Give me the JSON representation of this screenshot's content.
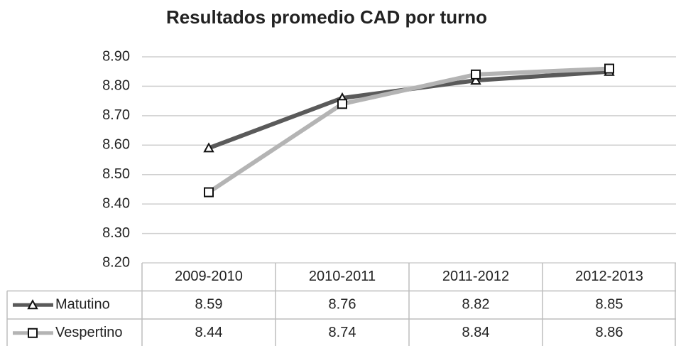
{
  "chart_data": {
    "type": "line",
    "title": "Resultados promedio CAD por turno",
    "categories": [
      "2009-2010",
      "2010-2011",
      "2011-2012",
      "2012-2013"
    ],
    "series": [
      {
        "name": "Matutino",
        "color": "#5a5a5a",
        "marker": "triangle",
        "values": [
          8.59,
          8.76,
          8.82,
          8.85
        ]
      },
      {
        "name": "Vespertino",
        "color": "#b4b4b4",
        "marker": "square",
        "values": [
          8.44,
          8.74,
          8.84,
          8.86
        ]
      }
    ],
    "ylim": [
      8.2,
      8.9
    ],
    "yticks": [
      {
        "value": 8.2,
        "label": "8.20"
      },
      {
        "value": 8.3,
        "label": "8.30"
      },
      {
        "value": 8.4,
        "label": "8.40"
      },
      {
        "value": 8.5,
        "label": "8.50"
      },
      {
        "value": 8.6,
        "label": "8.60"
      },
      {
        "value": 8.7,
        "label": "8.70"
      },
      {
        "value": 8.8,
        "label": "8.80"
      },
      {
        "value": 8.9,
        "label": "8.90"
      }
    ],
    "grid": true,
    "data_table": true
  }
}
